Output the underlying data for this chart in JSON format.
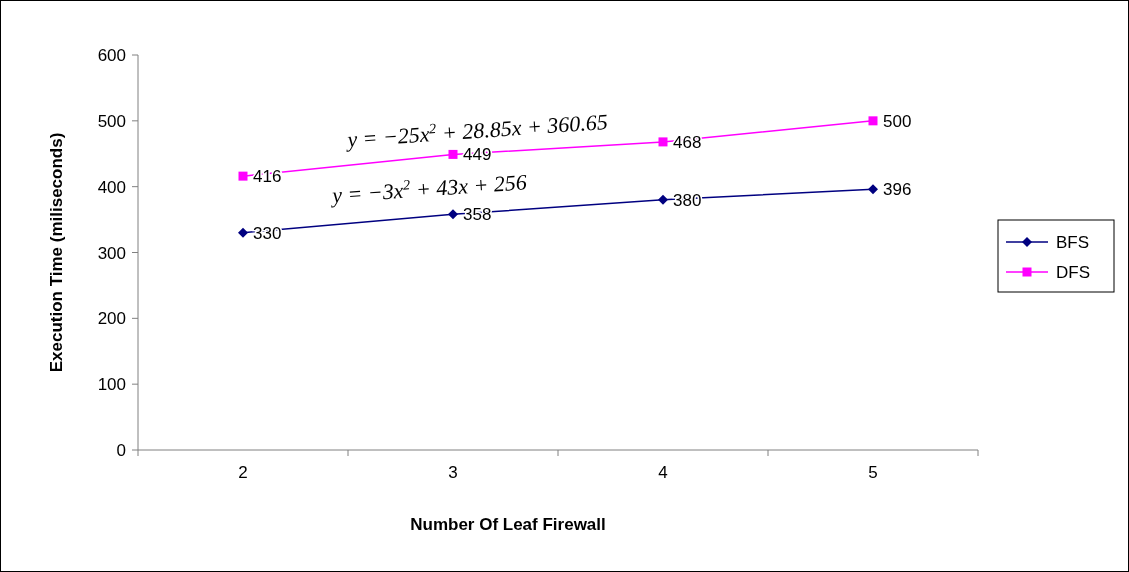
{
  "chart_data": {
    "type": "line",
    "xlabel": "Number Of Leaf Firewall",
    "ylabel": "Execution Time (miliseconds)",
    "categories": [
      "2",
      "3",
      "4",
      "5"
    ],
    "series": [
      {
        "name": "BFS",
        "color": "#000080",
        "values": [
          330,
          358,
          380,
          396
        ],
        "marker": "diamond"
      },
      {
        "name": "DFS",
        "color": "#ff00ff",
        "values": [
          416,
          449,
          468,
          500
        ],
        "marker": "square"
      }
    ],
    "ylim": [
      0,
      600
    ],
    "yticks": [
      0,
      100,
      200,
      300,
      400,
      500,
      600
    ],
    "grid": false,
    "legend": "right",
    "data_labels": true,
    "annotations": [
      "y = −25x$^{2}$ + 28.85x + 360.65",
      "y = −3x$^{2}$ + 43x + 256"
    ]
  }
}
